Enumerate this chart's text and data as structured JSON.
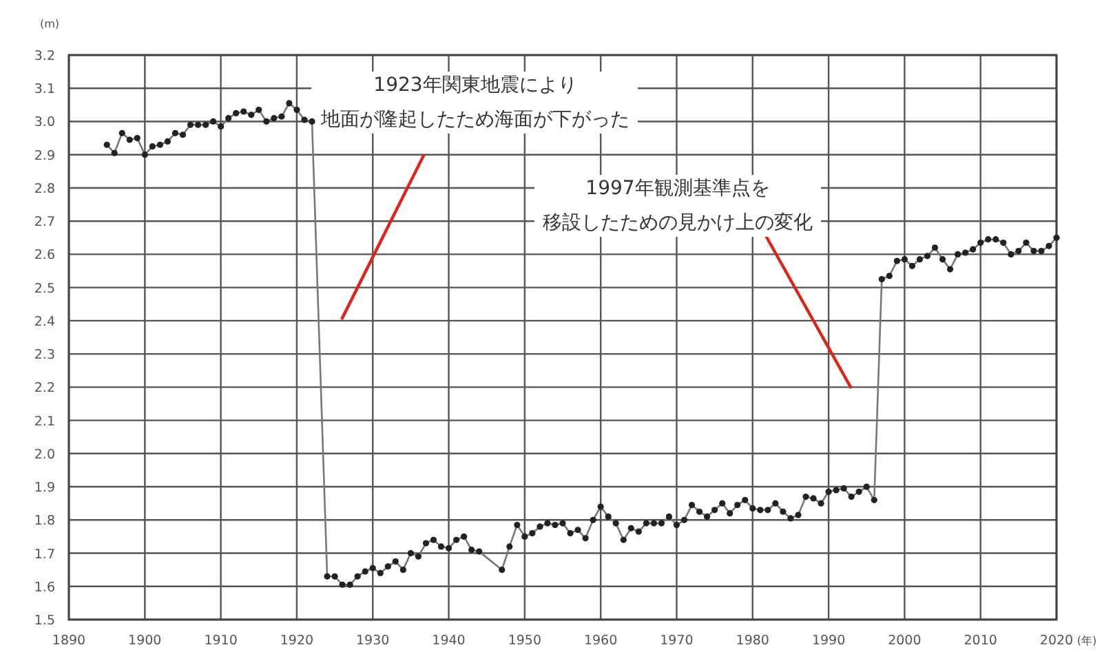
{
  "chart_data": {
    "type": "line",
    "xlabel": "(年)",
    "ylabel": "(m)",
    "x": [
      1895,
      1896,
      1897,
      1898,
      1899,
      1900,
      1901,
      1902,
      1903,
      1904,
      1905,
      1906,
      1907,
      1908,
      1909,
      1910,
      1911,
      1912,
      1913,
      1914,
      1915,
      1916,
      1917,
      1918,
      1919,
      1920,
      1921,
      1922,
      1924,
      1925,
      1926,
      1927,
      1928,
      1929,
      1930,
      1931,
      1932,
      1933,
      1934,
      1935,
      1936,
      1937,
      1938,
      1939,
      1940,
      1941,
      1942,
      1943,
      1944,
      1947,
      1948,
      1949,
      1950,
      1951,
      1952,
      1953,
      1954,
      1955,
      1956,
      1957,
      1958,
      1959,
      1960,
      1961,
      1962,
      1963,
      1964,
      1965,
      1966,
      1967,
      1968,
      1969,
      1970,
      1971,
      1972,
      1973,
      1974,
      1975,
      1976,
      1977,
      1978,
      1979,
      1980,
      1981,
      1982,
      1983,
      1984,
      1985,
      1986,
      1987,
      1988,
      1989,
      1990,
      1991,
      1992,
      1993,
      1994,
      1995,
      1996,
      1997,
      1998,
      1999,
      2000,
      2001,
      2002,
      2003,
      2004,
      2005,
      2006,
      2007,
      2008,
      2009,
      2010,
      2011,
      2012,
      2013,
      2014,
      2015,
      2016,
      2017,
      2018,
      2019,
      2020
    ],
    "series": [
      {
        "color": "#222222",
        "values": [
          2.93,
          2.905,
          2.965,
          2.945,
          2.95,
          2.9,
          2.925,
          2.93,
          2.94,
          2.965,
          2.96,
          2.99,
          2.99,
          2.99,
          3.0,
          2.985,
          3.01,
          3.025,
          3.03,
          3.02,
          3.035,
          3.0,
          3.01,
          3.015,
          3.055,
          3.035,
          3.005,
          3.0,
          1.63,
          1.63,
          1.605,
          1.605,
          1.63,
          1.645,
          1.655,
          1.64,
          1.66,
          1.675,
          1.65,
          1.7,
          1.69,
          1.73,
          1.74,
          1.72,
          1.715,
          1.74,
          1.75,
          1.71,
          1.705,
          1.65,
          1.72,
          1.785,
          1.75,
          1.76,
          1.78,
          1.79,
          1.785,
          1.79,
          1.76,
          1.77,
          1.745,
          1.8,
          1.84,
          1.81,
          1.79,
          1.74,
          1.775,
          1.765,
          1.79,
          1.79,
          1.79,
          1.81,
          1.785,
          1.8,
          1.845,
          1.825,
          1.81,
          1.83,
          1.85,
          1.82,
          1.845,
          1.86,
          1.835,
          1.83,
          1.83,
          1.85,
          1.825,
          1.805,
          1.815,
          1.87,
          1.865,
          1.85,
          1.885,
          1.89,
          1.895,
          1.87,
          1.885,
          1.9,
          1.86,
          2.525,
          2.535,
          2.58,
          2.585,
          2.565,
          2.585,
          2.595,
          2.62,
          2.585,
          2.555,
          2.6,
          2.605,
          2.615,
          2.635,
          2.645,
          2.645,
          2.635,
          2.6,
          2.61,
          2.635,
          2.61,
          2.61,
          2.625,
          2.65
        ]
      }
    ],
    "xlim": [
      1890,
      2020
    ],
    "xticks": [
      1890,
      1900,
      1910,
      1920,
      1930,
      1940,
      1950,
      1960,
      1970,
      1980,
      1990,
      2000,
      2010,
      2020
    ],
    "ylim": [
      1.5,
      3.2
    ],
    "yticks": [
      {
        "value": 1.5,
        "label": "1.5"
      },
      {
        "value": 1.6,
        "label": "1.6"
      },
      {
        "value": 1.7,
        "label": "1.7"
      },
      {
        "value": 1.8,
        "label": "1.8"
      },
      {
        "value": 1.9,
        "label": "1.9"
      },
      {
        "value": 2.0,
        "label": "2.0"
      },
      {
        "value": 2.1,
        "label": "2.1"
      },
      {
        "value": 2.2,
        "label": "2.2"
      },
      {
        "value": 2.3,
        "label": "2.3"
      },
      {
        "value": 2.4,
        "label": "2.4"
      },
      {
        "value": 2.5,
        "label": "2.5"
      },
      {
        "value": 2.6,
        "label": "2.6"
      },
      {
        "value": 2.7,
        "label": "2.7"
      },
      {
        "value": 2.8,
        "label": "2.8"
      },
      {
        "value": 2.9,
        "label": "2.9"
      },
      {
        "value": 3.0,
        "label": "3.0"
      },
      {
        "value": 3.1,
        "label": "3.1"
      },
      {
        "value": 3.2,
        "label": "3.2"
      }
    ],
    "grid": true,
    "marker": "circle",
    "line_style": "solid",
    "annotations": [
      "1923年関東地震により地面が隆起したため海面が下がった",
      "1997年観測基準点を移設したための見かけ上の変化"
    ]
  }
}
